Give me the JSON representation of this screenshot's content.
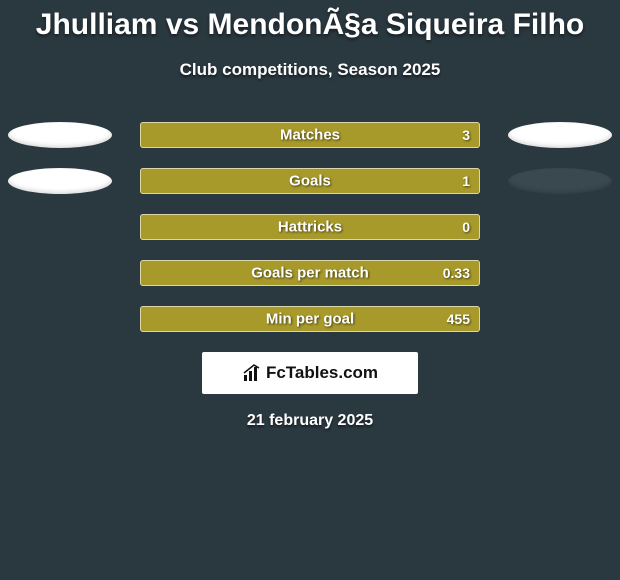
{
  "title": "Jhulliam vs MendonÃ§a Siqueira Filho",
  "subtitle": "Club competitions, Season 2025",
  "date": "21 february 2025",
  "logo_text": "FcTables.com",
  "colors": {
    "background": "#2a3840",
    "bar_fill": "#a89a2a",
    "bar_border": "#ffffff",
    "left_ellipse": "#ffffff",
    "right_ellipse": "#ffffff",
    "text": "#ffffff"
  },
  "stats": [
    {
      "label": "Matches",
      "value": "3",
      "fill_percent": 100,
      "show_left_ellipse": true,
      "show_right_ellipse": true,
      "right_ellipse_color": "#ffffff"
    },
    {
      "label": "Goals",
      "value": "1",
      "fill_percent": 100,
      "show_left_ellipse": true,
      "show_right_ellipse": true,
      "right_ellipse_color": "#3a4850"
    },
    {
      "label": "Hattricks",
      "value": "0",
      "fill_percent": 100,
      "show_left_ellipse": false,
      "show_right_ellipse": false
    },
    {
      "label": "Goals per match",
      "value": "0.33",
      "fill_percent": 100,
      "show_left_ellipse": false,
      "show_right_ellipse": false
    },
    {
      "label": "Min per goal",
      "value": "455",
      "fill_percent": 100,
      "show_left_ellipse": false,
      "show_right_ellipse": false
    }
  ]
}
